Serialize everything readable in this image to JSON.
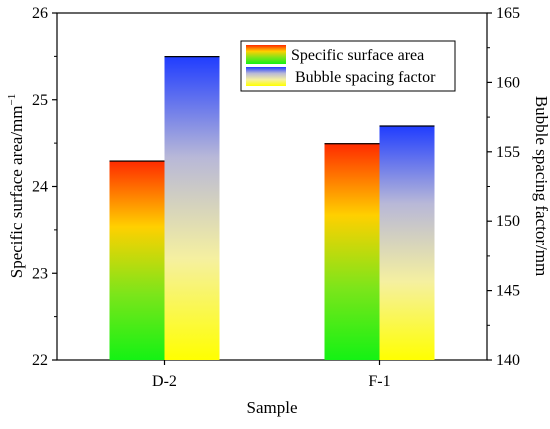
{
  "chart_data": {
    "type": "bar",
    "categories": [
      "D-2",
      "F-1"
    ],
    "series": [
      {
        "name": "Specific surface area",
        "axis": "left",
        "values": [
          24.3,
          24.5
        ],
        "gradient": [
          "#ff2a00",
          "#ffd000",
          "#7de51a",
          "#14f214"
        ]
      },
      {
        "name": "Bubble spacing factor",
        "axis": "right",
        "values": [
          161.9,
          156.9
        ],
        "gradient": [
          "#1f3cff",
          "#b8b8d8",
          "#f5f0a0",
          "#ffff00"
        ]
      }
    ],
    "xlabel": "Sample",
    "ylabel_left": "Specific surface area/mm",
    "ylabel_left_sup": "−1",
    "ylabel_right": "Bubble spacing factor/mm",
    "ylim_left": [
      22,
      26
    ],
    "ylim_right": [
      140,
      165
    ],
    "yticks_left": [
      "22",
      "23",
      "24",
      "25",
      "26"
    ],
    "yticks_right": [
      "140",
      "145",
      "150",
      "155",
      "160",
      "165"
    ],
    "legend_position": "top-right",
    "grid": false
  }
}
